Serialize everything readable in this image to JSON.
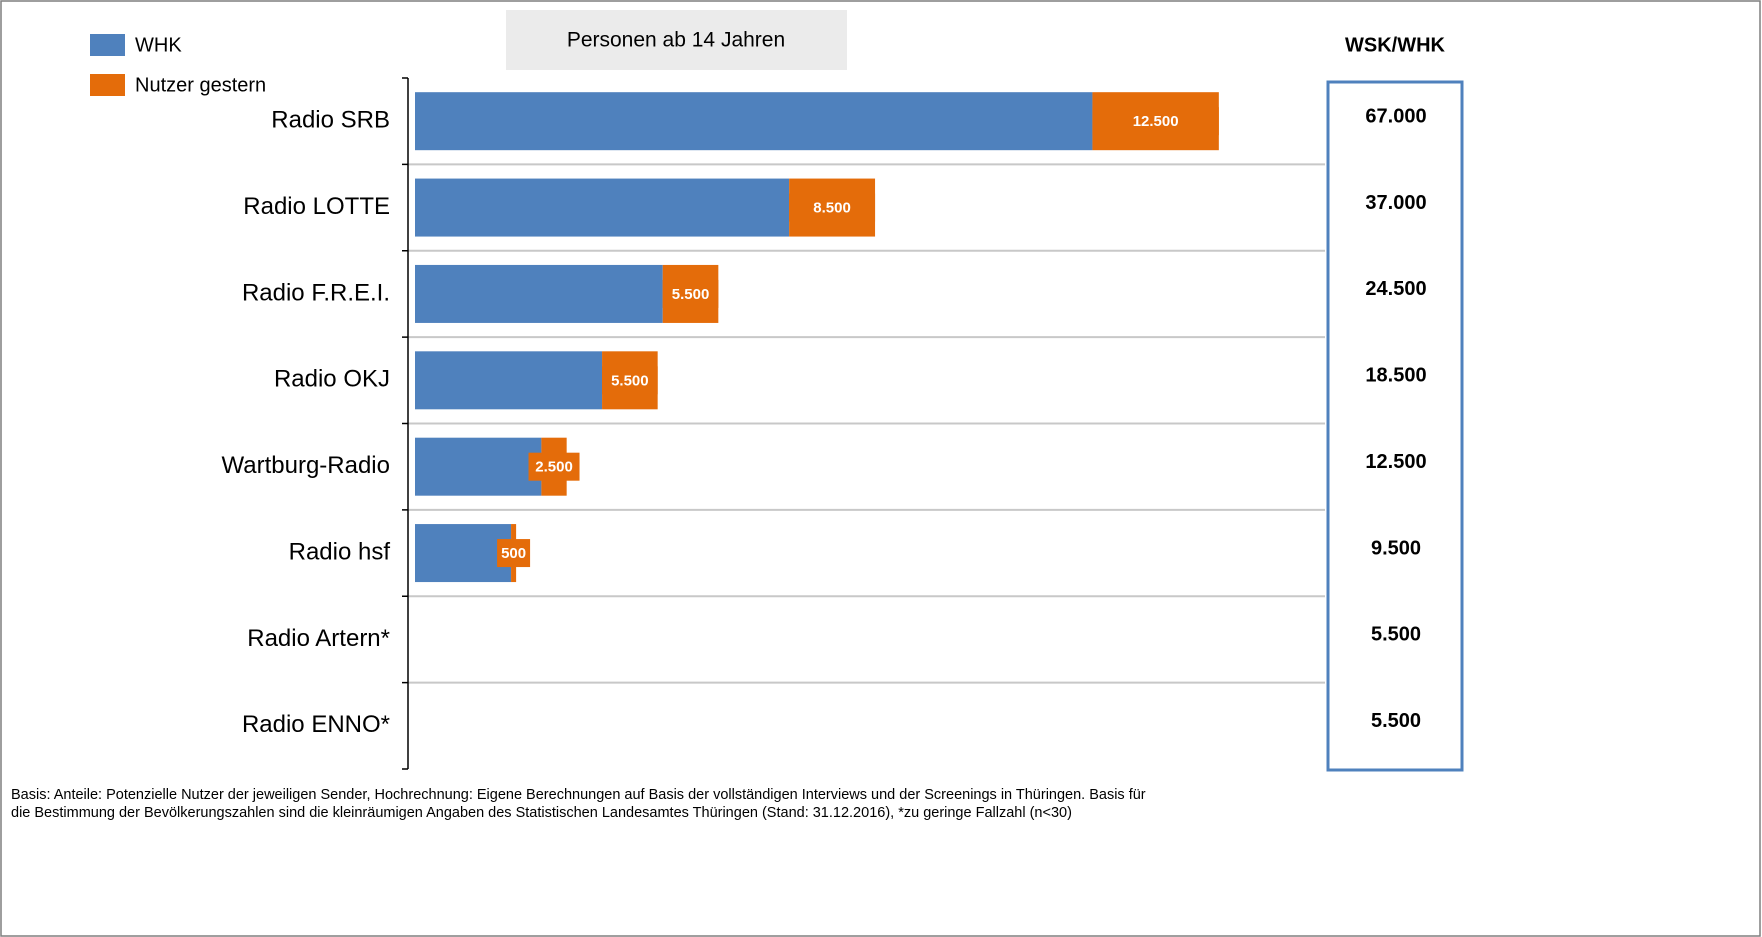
{
  "chart_data": {
    "type": "stacked-bar-horizontal",
    "subtitle": "Personen ab 14 Jahren",
    "categories": [
      "Radio SRB",
      "Radio LOTTE",
      "Radio F.R.E.I.",
      "Radio OKJ",
      "Wartburg-Radio",
      "Radio hsf",
      "Radio Artern*",
      "Radio ENNO*"
    ],
    "series": [
      {
        "name": "WHK",
        "color": "#4f81bd",
        "values": [
          67000,
          37000,
          24500,
          18500,
          12500,
          9500,
          null,
          null
        ]
      },
      {
        "name": "Nutzer gestern",
        "color": "#e46c0a",
        "values": [
          12500,
          8500,
          5500,
          5500,
          2500,
          500,
          null,
          null
        ],
        "value_labels": [
          "12.500",
          "8.500",
          "5.500",
          "5.500",
          "2.500",
          "500",
          null,
          null
        ]
      }
    ],
    "xlim": [
      0,
      90000
    ],
    "grid": true,
    "side_column": {
      "title": "WSK/WHK",
      "values": [
        "67.000",
        "37.000",
        "24.500",
        "18.500",
        "12.500",
        "9.500",
        "5.500",
        "5.500"
      ]
    },
    "footnote": [
      "Basis: Anteile: Potenzielle Nutzer der jeweiligen Sender, Hochrechnung: Eigene Berechnungen auf Basis der vollständigen Interviews und der Screenings in Thüringen. Basis für",
      "die Bestimmung der Bevölkerungszahlen sind die kleinräumigen Angaben des Statistischen Landesamtes Thüringen (Stand: 31.12.2016), *zu geringe Fallzahl (n<30)"
    ]
  }
}
